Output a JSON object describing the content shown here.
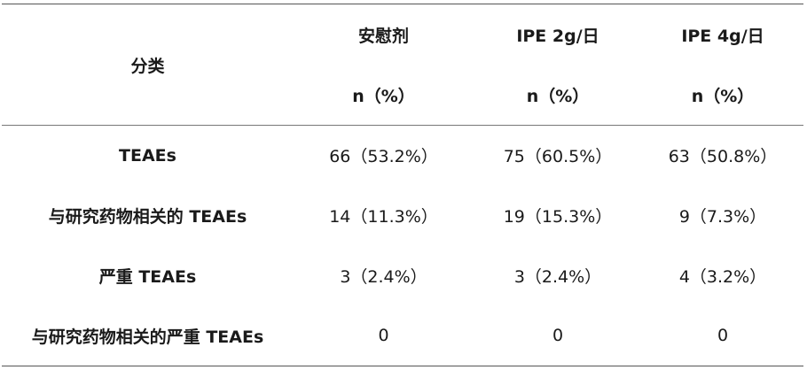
{
  "table": {
    "header": {
      "category": "分类",
      "groups": [
        "安慰剂",
        "IPE 2g/日",
        "IPE 4g/日"
      ],
      "unit": "n（%）"
    },
    "rows": [
      {
        "label": "TEAEs",
        "values": [
          "66（53.2%）",
          "75（60.5%）",
          "63（50.8%）"
        ]
      },
      {
        "label": "与研究药物相关的 TEAEs",
        "values": [
          "14（11.3%）",
          "19（15.3%）",
          "9（7.3%）"
        ]
      },
      {
        "label": "严重 TEAEs",
        "values": [
          "3（2.4%）",
          "3（2.4%）",
          "4（3.2%）"
        ]
      },
      {
        "label": "与研究药物相关的严重 TEAEs",
        "values": [
          "0",
          "0",
          "0"
        ]
      }
    ]
  }
}
